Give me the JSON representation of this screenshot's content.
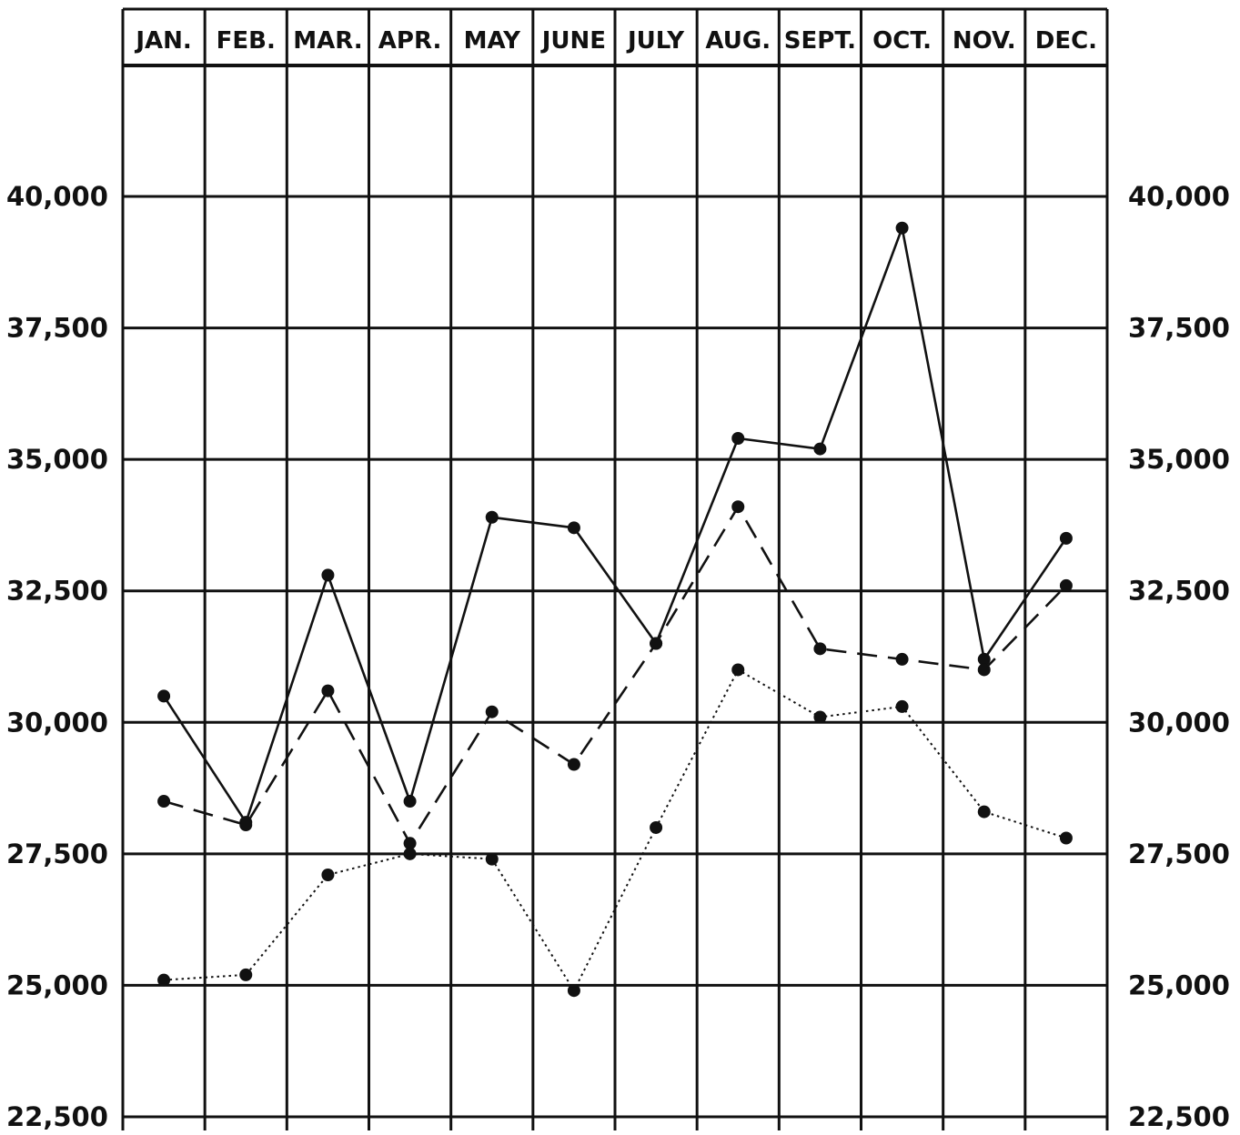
{
  "chart_data": {
    "type": "line",
    "categories": [
      "JAN.",
      "FEB.",
      "MAR.",
      "APR.",
      "MAY",
      "JUNE",
      "JULY",
      "AUG.",
      "SEPT.",
      "OCT.",
      "NOV.",
      "DEC."
    ],
    "ylim": [
      22500,
      42500
    ],
    "y_ticks": [
      22500,
      25000,
      27500,
      30000,
      32500,
      35000,
      37500,
      40000
    ],
    "y_tick_labels": [
      "22,500",
      "25,000",
      "27,500",
      "30,000",
      "32,500",
      "35,000",
      "37,500",
      "40,000"
    ],
    "grid": true,
    "series": [
      {
        "style": "solid",
        "values": [
          30500,
          28100,
          32800,
          28500,
          33900,
          33700,
          31500,
          35400,
          35200,
          39400,
          31200,
          33500
        ]
      },
      {
        "style": "dashed",
        "values": [
          28500,
          28050,
          30600,
          27700,
          30200,
          29200,
          31500,
          34100,
          31400,
          31200,
          31000,
          32600
        ]
      },
      {
        "style": "dotted",
        "values": [
          25100,
          25200,
          27100,
          27500,
          27400,
          24900,
          28000,
          31000,
          30100,
          30300,
          28300,
          27800
        ]
      }
    ],
    "colors": {
      "line": "#111111",
      "grid": "#111111",
      "background": "#ffffff"
    }
  }
}
